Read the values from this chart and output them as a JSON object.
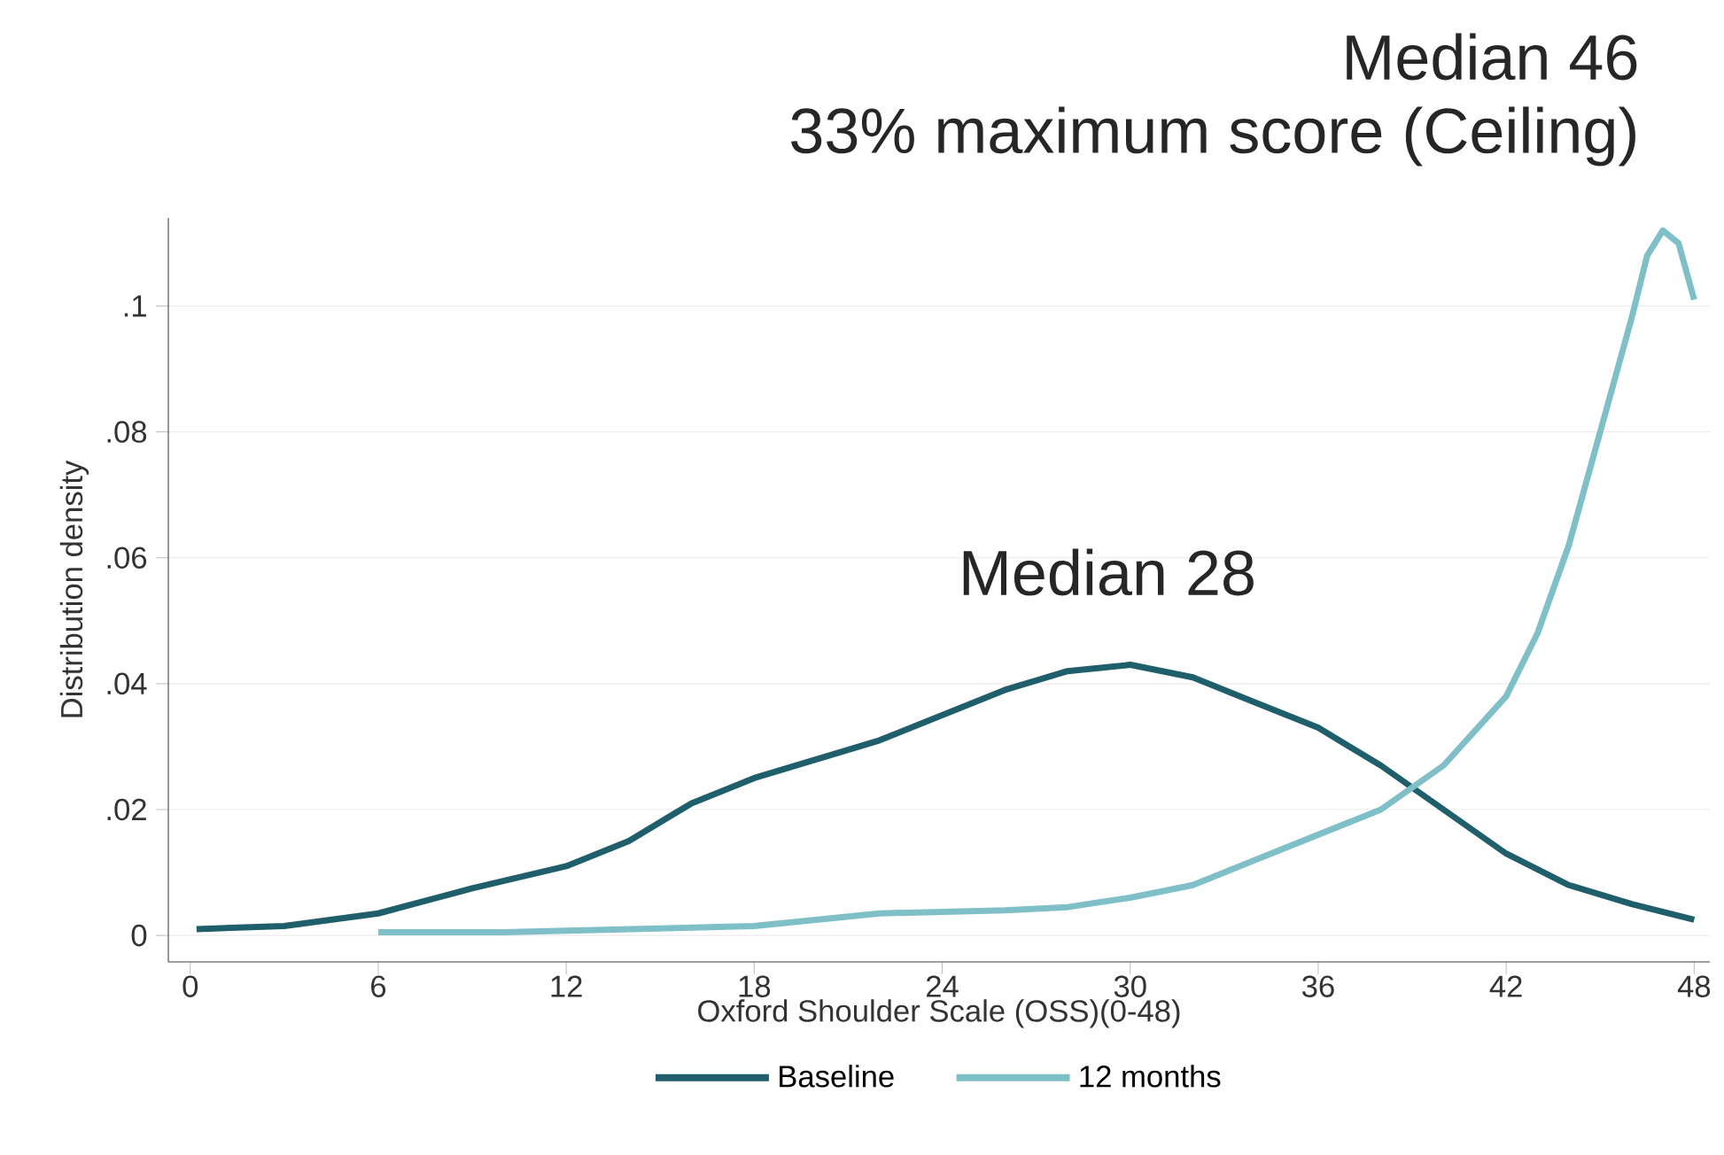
{
  "chart_data": {
    "type": "line",
    "xlabel": "Oxford Shoulder Scale (OSS)(0-48)",
    "ylabel": "Distribution density",
    "annotations": [
      "Median 46",
      "33% maximum score (Ceiling)",
      "Median 28"
    ],
    "series": [
      {
        "name": "Baseline",
        "color": "#1f5f6b",
        "x": [
          0.2,
          3,
          6,
          9,
          12,
          14,
          16,
          18,
          20,
          22,
          24,
          26,
          28,
          30,
          32,
          34,
          36,
          38,
          40,
          42,
          44,
          46,
          48
        ],
        "values": [
          0.001,
          0.0015,
          0.0035,
          0.0075,
          0.011,
          0.015,
          0.021,
          0.025,
          0.028,
          0.031,
          0.035,
          0.039,
          0.042,
          0.043,
          0.041,
          0.037,
          0.033,
          0.027,
          0.02,
          0.013,
          0.008,
          0.005,
          0.0025
        ]
      },
      {
        "name": "12 months",
        "color": "#7fbfc7",
        "x": [
          6,
          10,
          14,
          18,
          22,
          26,
          28,
          30,
          32,
          34,
          36,
          38,
          40,
          42,
          43,
          44,
          45,
          46,
          46.5,
          47,
          47.5,
          48
        ],
        "values": [
          0.0005,
          0.0005,
          0.001,
          0.0015,
          0.0035,
          0.004,
          0.0045,
          0.006,
          0.008,
          0.012,
          0.016,
          0.02,
          0.027,
          0.038,
          0.048,
          0.062,
          0.08,
          0.098,
          0.108,
          0.112,
          0.11,
          0.101
        ]
      }
    ],
    "xlim": [
      -0.7,
      48.5
    ],
    "ylim": [
      -0.0042,
      0.114
    ],
    "xticks": [
      0,
      6,
      12,
      18,
      24,
      30,
      36,
      42,
      48
    ],
    "yticks": [
      0,
      {
        "value": 0.02,
        "label": ".02"
      },
      {
        "value": 0.04,
        "label": ".04"
      },
      {
        "value": 0.06,
        "label": ".06"
      },
      {
        "value": 0.08,
        "label": ".08"
      },
      {
        "value": 0.1,
        "label": ".1"
      }
    ],
    "grid": "y",
    "legend": "bottom"
  }
}
